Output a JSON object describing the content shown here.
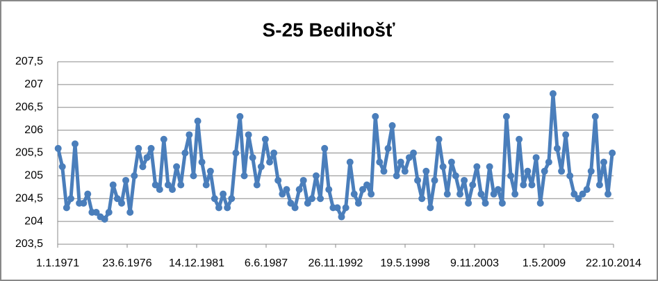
{
  "chart_data": {
    "type": "line",
    "title": "S-25 Bedihošť",
    "color": "#4a7ebb",
    "grid": true,
    "x": [
      "15.1.1971",
      "15.5.1971",
      "15.9.1971",
      "15.1.1972",
      "15.5.1972",
      "15.9.1972",
      "15.1.1973",
      "15.5.1973",
      "15.9.1973",
      "15.1.1974",
      "15.5.1974",
      "15.9.1974",
      "15.1.1975",
      "15.5.1975",
      "15.9.1975",
      "15.1.1976",
      "15.5.1976",
      "15.9.1976",
      "15.1.1977",
      "15.5.1977",
      "15.9.1977",
      "15.1.1978",
      "15.5.1978",
      "15.9.1978",
      "15.1.1979",
      "15.5.1979",
      "15.9.1979",
      "15.1.1980",
      "15.5.1980",
      "15.9.1980",
      "15.1.1981",
      "15.5.1981",
      "15.9.1981",
      "15.1.1982",
      "15.5.1982",
      "15.9.1982",
      "15.1.1983",
      "15.5.1983",
      "15.9.1983",
      "15.1.1984",
      "15.5.1984",
      "15.9.1984",
      "15.1.1985",
      "15.5.1985",
      "15.9.1985",
      "15.1.1986",
      "15.5.1986",
      "15.9.1986",
      "15.1.1987",
      "15.5.1987",
      "15.9.1987",
      "15.1.1988",
      "15.5.1988",
      "15.9.1988",
      "15.1.1989",
      "15.5.1989",
      "15.9.1989",
      "15.1.1990",
      "15.5.1990",
      "15.9.1990",
      "15.1.1991",
      "15.5.1991",
      "15.9.1991",
      "15.1.1992",
      "15.5.1992",
      "15.9.1992",
      "15.1.1993",
      "15.5.1993",
      "15.9.1993",
      "15.1.1994",
      "15.5.1994",
      "15.9.1994",
      "15.1.1995",
      "15.5.1995",
      "15.9.1995",
      "15.1.1996",
      "15.5.1996",
      "15.9.1996",
      "15.1.1997",
      "15.5.1997",
      "15.9.1997",
      "15.1.1998",
      "15.5.1998",
      "15.9.1998",
      "15.1.1999",
      "15.5.1999",
      "15.9.1999",
      "15.1.2000",
      "15.5.2000",
      "15.9.2000",
      "15.1.2001",
      "15.5.2001",
      "15.9.2001",
      "15.1.2002",
      "15.5.2002",
      "15.9.2002",
      "15.1.2003",
      "15.5.2003",
      "15.9.2003",
      "15.1.2004",
      "15.5.2004",
      "15.9.2004",
      "15.1.2005",
      "15.5.2005",
      "15.9.2005",
      "15.1.2006",
      "15.5.2006",
      "15.9.2006",
      "15.1.2007",
      "15.5.2007",
      "15.9.2007",
      "15.1.2008",
      "15.5.2008",
      "15.9.2008",
      "15.1.2009",
      "15.5.2009",
      "15.9.2009",
      "15.1.2010",
      "15.5.2010",
      "15.9.2010",
      "15.1.2011",
      "15.5.2011",
      "15.9.2011",
      "15.1.2012",
      "15.5.2012",
      "15.9.2012",
      "15.1.2013",
      "15.5.2013",
      "15.9.2013",
      "15.1.2014",
      "15.5.2014",
      "15.9.2014"
    ],
    "values": [
      205.6,
      205.2,
      204.3,
      204.5,
      205.7,
      204.4,
      204.4,
      204.6,
      204.2,
      204.2,
      204.1,
      204.05,
      204.2,
      204.8,
      204.5,
      204.4,
      204.9,
      204.2,
      205.0,
      205.6,
      205.2,
      205.4,
      205.6,
      204.8,
      204.7,
      205.8,
      204.8,
      204.7,
      205.2,
      204.8,
      205.5,
      205.9,
      205.0,
      206.2,
      205.3,
      204.8,
      205.1,
      204.5,
      204.3,
      204.6,
      204.3,
      204.5,
      205.5,
      206.3,
      205.0,
      205.9,
      205.4,
      204.8,
      205.2,
      205.8,
      205.3,
      205.5,
      204.9,
      204.6,
      204.7,
      204.4,
      204.3,
      204.7,
      204.9,
      204.4,
      204.5,
      205.0,
      204.5,
      205.6,
      204.7,
      204.3,
      204.3,
      204.1,
      204.3,
      205.3,
      204.6,
      204.4,
      204.7,
      204.8,
      204.6,
      206.3,
      205.3,
      205.1,
      205.6,
      206.1,
      205.0,
      205.3,
      205.1,
      205.4,
      205.5,
      204.9,
      204.5,
      205.1,
      204.3,
      204.9,
      205.8,
      205.2,
      204.6,
      205.3,
      205.0,
      204.6,
      204.9,
      204.4,
      204.8,
      205.2,
      204.6,
      204.4,
      205.2,
      204.6,
      204.7,
      204.4,
      206.3,
      205.0,
      204.6,
      205.8,
      204.8,
      205.1,
      204.8,
      205.4,
      204.4,
      205.1,
      205.3,
      206.8,
      205.6,
      205.1,
      205.9,
      205.0,
      204.6,
      204.5,
      204.6,
      204.7,
      205.1,
      206.3,
      204.8,
      205.3,
      204.6,
      205.5
    ],
    "xlim": [
      "1.1.1971",
      "22.10.2014"
    ],
    "xticks": [
      "1.1.1971",
      "23.6.1976",
      "14.12.1981",
      "6.6.1987",
      "26.11.1992",
      "19.5.1998",
      "9.11.2003",
      "1.5.2009",
      "22.10.2014"
    ],
    "ylim": [
      203.5,
      207.5
    ],
    "yticks": [
      {
        "value": 203.5,
        "label": "203,5"
      },
      204,
      {
        "value": 204.5,
        "label": "204,5"
      },
      205,
      {
        "value": 205.5,
        "label": "205,5"
      },
      206,
      {
        "value": 206.5,
        "label": "206,5"
      },
      207,
      {
        "value": 207.5,
        "label": "207,5"
      }
    ]
  }
}
